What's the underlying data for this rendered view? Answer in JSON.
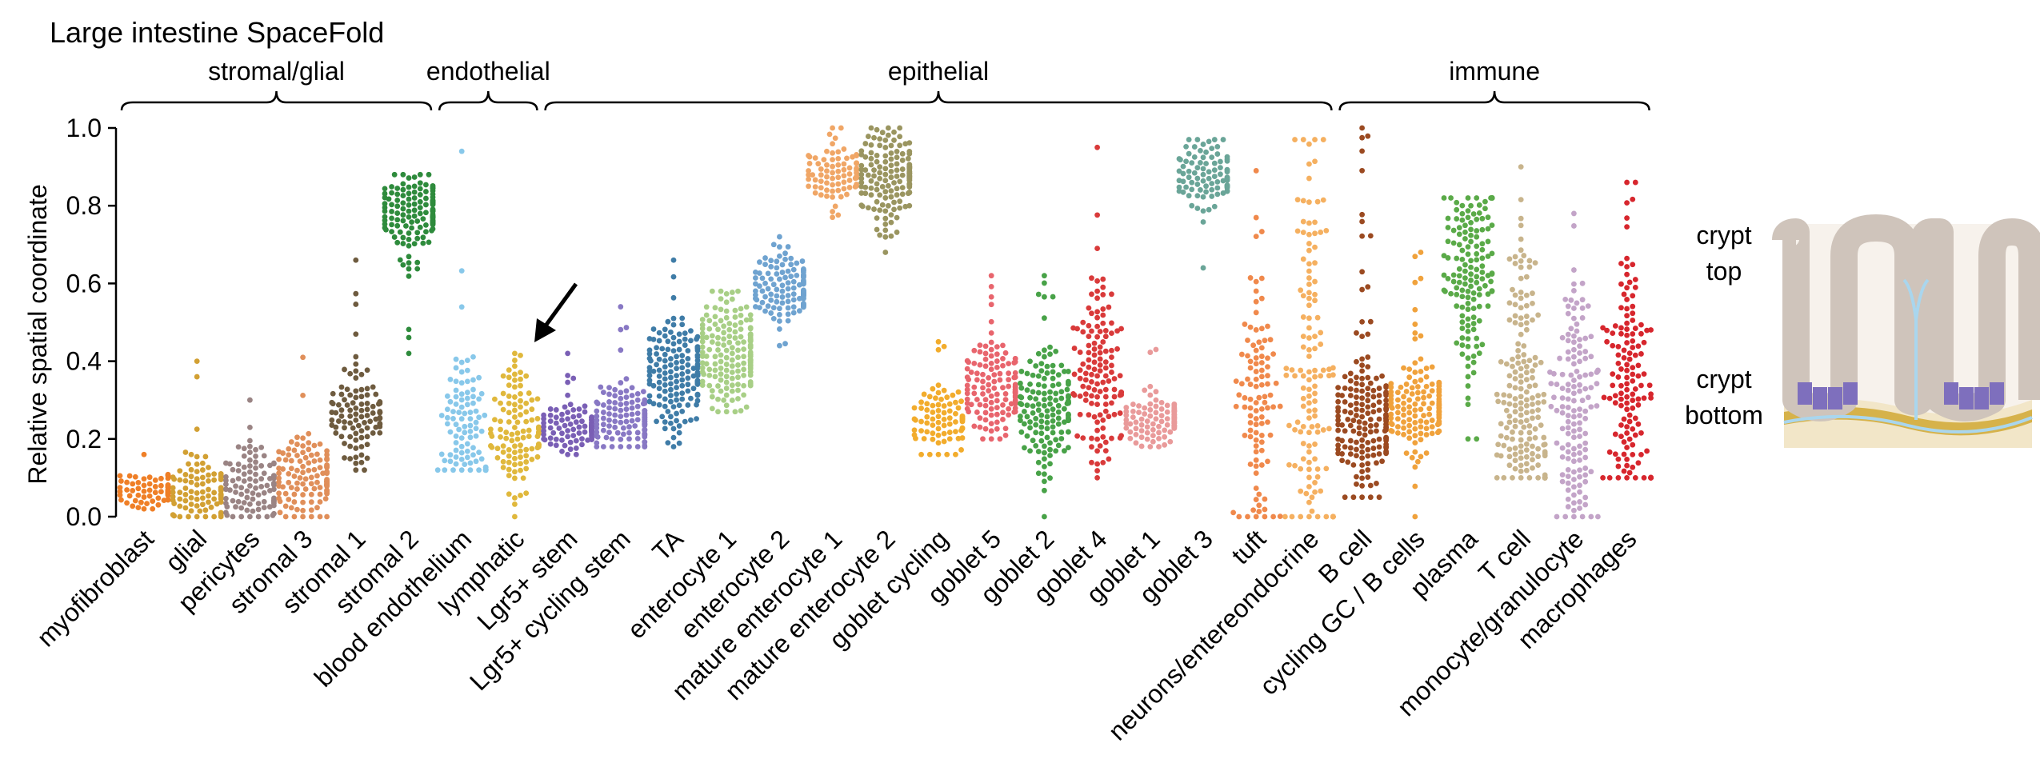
{
  "chart_data": {
    "type": "scatter",
    "subtype": "beeswarm",
    "title": "Large intestine SpaceFold",
    "ylabel": "Relative spatial coordinate",
    "ylim": [
      0.0,
      1.0
    ],
    "yticks": [
      "0.0",
      "0.2",
      "0.4",
      "0.6",
      "0.8",
      "1.0"
    ],
    "grid": false,
    "groups": [
      {
        "label": "stromal/glial",
        "from": 0,
        "to": 5
      },
      {
        "label": "endothelial",
        "from": 6,
        "to": 7
      },
      {
        "label": "epithelial",
        "from": 8,
        "to": 22
      },
      {
        "label": "immune",
        "from": 23,
        "to": 28
      }
    ],
    "categories": [
      {
        "label": "myofibroblast",
        "color": "#ef7f27",
        "n": 70,
        "median": 0.07,
        "spread": 0.025,
        "min": 0.02,
        "max": 0.16
      },
      {
        "label": "glial",
        "color": "#d2a033",
        "n": 90,
        "median": 0.06,
        "spread": 0.04,
        "min": 0.0,
        "max": 0.4
      },
      {
        "label": "pericytes",
        "color": "#9a8484",
        "n": 100,
        "median": 0.08,
        "spread": 0.05,
        "min": 0.0,
        "max": 0.3
      },
      {
        "label": "stromal 3",
        "color": "#e08f5a",
        "n": 120,
        "median": 0.1,
        "spread": 0.05,
        "min": 0.0,
        "max": 0.41
      },
      {
        "label": "stromal 1",
        "color": "#6e5b3f",
        "n": 100,
        "median": 0.26,
        "spread": 0.06,
        "min": 0.12,
        "max": 0.66
      },
      {
        "label": "stromal 2",
        "color": "#2e8b3c",
        "n": 140,
        "median": 0.78,
        "spread": 0.05,
        "min": 0.42,
        "max": 0.88
      },
      {
        "label": "blood endothelium",
        "color": "#88c8ea",
        "n": 100,
        "median": 0.22,
        "spread": 0.12,
        "min": 0.12,
        "max": 0.94
      },
      {
        "label": "lymphatic",
        "color": "#e0b83c",
        "n": 110,
        "median": 0.2,
        "spread": 0.08,
        "min": 0.0,
        "max": 0.42
      },
      {
        "label": "Lgr5+ stem",
        "color": "#7a5fb5",
        "n": 110,
        "median": 0.23,
        "spread": 0.025,
        "min": 0.16,
        "max": 0.42
      },
      {
        "label": "Lgr5+ cycling stem",
        "color": "#8878c4",
        "n": 130,
        "median": 0.25,
        "spread": 0.04,
        "min": 0.18,
        "max": 0.54
      },
      {
        "label": "TA",
        "color": "#3f7ca7",
        "n": 160,
        "median": 0.36,
        "spread": 0.07,
        "min": 0.18,
        "max": 0.66
      },
      {
        "label": "enterocyte 1",
        "color": "#a8cf86",
        "n": 170,
        "median": 0.42,
        "spread": 0.07,
        "min": 0.27,
        "max": 0.58
      },
      {
        "label": "enterocyte 2",
        "color": "#6fa3d0",
        "n": 130,
        "median": 0.59,
        "spread": 0.04,
        "min": 0.44,
        "max": 0.72
      },
      {
        "label": "mature enterocyte 1",
        "color": "#f0a666",
        "n": 80,
        "median": 0.88,
        "spread": 0.04,
        "min": 0.77,
        "max": 1.0
      },
      {
        "label": "mature enterocyte 2",
        "color": "#9a9560",
        "n": 150,
        "median": 0.88,
        "spread": 0.06,
        "min": 0.68,
        "max": 1.0
      },
      {
        "label": "goblet cycling",
        "color": "#f2ac2c",
        "n": 80,
        "median": 0.25,
        "spread": 0.04,
        "min": 0.16,
        "max": 0.45
      },
      {
        "label": "goblet 5",
        "color": "#e8656d",
        "n": 130,
        "median": 0.33,
        "spread": 0.06,
        "min": 0.2,
        "max": 0.62
      },
      {
        "label": "goblet 2",
        "color": "#48a248",
        "n": 150,
        "median": 0.26,
        "spread": 0.08,
        "min": 0.0,
        "max": 0.62
      },
      {
        "label": "goblet 4",
        "color": "#d93a3a",
        "n": 130,
        "median": 0.36,
        "spread": 0.12,
        "min": 0.1,
        "max": 0.95
      },
      {
        "label": "goblet 1",
        "color": "#e99a9a",
        "n": 110,
        "median": 0.25,
        "spread": 0.03,
        "min": 0.18,
        "max": 0.43
      },
      {
        "label": "goblet 3",
        "color": "#6aa598",
        "n": 90,
        "median": 0.88,
        "spread": 0.05,
        "min": 0.64,
        "max": 0.97
      },
      {
        "label": "tuft",
        "color": "#f0894c",
        "n": 100,
        "median": 0.3,
        "spread": 0.2,
        "min": 0.0,
        "max": 0.89
      },
      {
        "label": "neurons/entereondocrine",
        "color": "#f5b060",
        "n": 130,
        "median": 0.35,
        "spread": 0.3,
        "min": 0.0,
        "max": 0.97
      },
      {
        "label": "B cell",
        "color": "#9b4a21",
        "n": 180,
        "median": 0.24,
        "spread": 0.09,
        "min": 0.05,
        "max": 1.0
      },
      {
        "label": "cycling GC / B cells",
        "color": "#f0a23c",
        "n": 140,
        "median": 0.28,
        "spread": 0.06,
        "min": 0.0,
        "max": 0.68
      },
      {
        "label": "plasma",
        "color": "#5aaa48",
        "n": 150,
        "median": 0.65,
        "spread": 0.14,
        "min": 0.2,
        "max": 0.82
      },
      {
        "label": "T cell",
        "color": "#c8b48c",
        "n": 180,
        "median": 0.3,
        "spread": 0.2,
        "min": 0.1,
        "max": 0.9
      },
      {
        "label": "monocyte/granulocyte",
        "color": "#c3a4c8",
        "n": 140,
        "median": 0.26,
        "spread": 0.17,
        "min": 0.0,
        "max": 0.78
      },
      {
        "label": "macrophages",
        "color": "#d7262d",
        "n": 140,
        "median": 0.35,
        "spread": 0.2,
        "min": 0.1,
        "max": 0.86
      }
    ],
    "annotations": {
      "arrow_target": "lymphatic",
      "crypt_top": "crypt\ntop",
      "crypt_bottom": "crypt\nbottom"
    }
  },
  "labels": {
    "crypt_top_line1": "crypt",
    "crypt_top_line2": "top",
    "crypt_bottom_line1": "crypt",
    "crypt_bottom_line2": "bottom"
  }
}
